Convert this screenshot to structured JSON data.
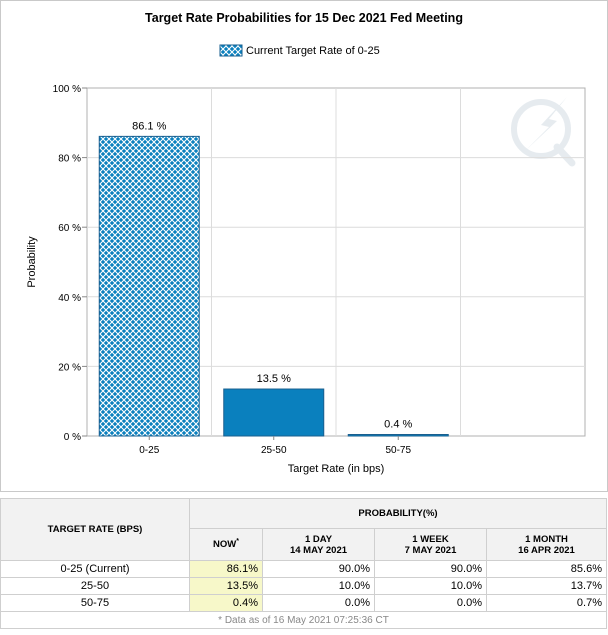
{
  "chart_data": {
    "type": "bar",
    "title": "Target Rate Probabilities for 15 Dec 2021 Fed Meeting",
    "legend": {
      "label": "Current Target Rate of 0-25",
      "position": "top"
    },
    "xlabel": "Target Rate (in bps)",
    "ylabel": "Probability",
    "ylim": [
      0,
      100
    ],
    "yticks": [
      "0 %",
      "20 %",
      "40 %",
      "60 %",
      "80 %",
      "100 %"
    ],
    "grid": true,
    "categories": [
      "0-25",
      "25-50",
      "50-75"
    ],
    "values": [
      86.1,
      13.5,
      0.4
    ],
    "data_labels": [
      "86.1 %",
      "13.5 %",
      "0.4 %"
    ],
    "colors": {
      "bar": "#0a80be",
      "hatched_bar_bg": "#0a80be"
    },
    "hatched_category": "0-25"
  },
  "table": {
    "col_target": "TARGET RATE (BPS)",
    "col_probability": "PROBABILITY(%)",
    "subheaders": [
      {
        "line1": "NOW",
        "line2": "*"
      },
      {
        "line1": "1 DAY",
        "line2": "14 MAY 2021"
      },
      {
        "line1": "1 WEEK",
        "line2": "7 MAY 2021"
      },
      {
        "line1": "1 MONTH",
        "line2": "16 APR 2021"
      }
    ],
    "rows": [
      {
        "rate": "0-25 (Current)",
        "now": "86.1%",
        "day": "90.0%",
        "week": "90.0%",
        "month": "85.6%"
      },
      {
        "rate": "25-50",
        "now": "13.5%",
        "day": "10.0%",
        "week": "10.0%",
        "month": "13.7%"
      },
      {
        "rate": "50-75",
        "now": "0.4%",
        "day": "0.0%",
        "week": "0.0%",
        "month": "0.7%"
      }
    ],
    "footnote": "* Data as of 16 May 2021 07:25:36 CT"
  }
}
